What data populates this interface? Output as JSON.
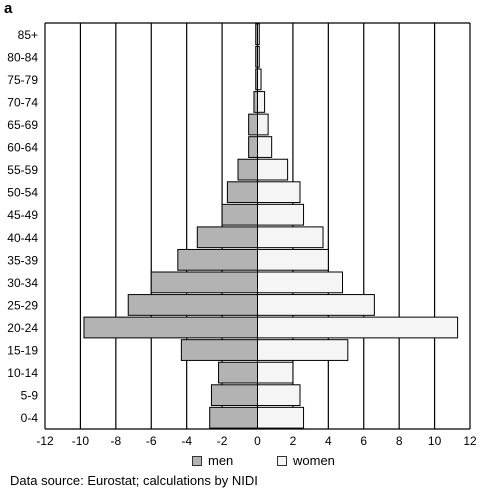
{
  "panel_label": "a",
  "source_note": "Data source: Eurostat; calculations by NIDI",
  "legend": {
    "men_label": "men",
    "women_label": "women"
  },
  "colors": {
    "men": "#b3b3b3",
    "women": "#f5f5f5",
    "gridline": "#000000",
    "bar_stroke": "#000000"
  },
  "chart_data": {
    "type": "bar",
    "orientation": "horizontal",
    "subtype": "population-pyramid",
    "categories": [
      "85+",
      "80-84",
      "75-79",
      "70-74",
      "65-69",
      "60-64",
      "55-59",
      "50-54",
      "45-49",
      "40-44",
      "35-39",
      "30-34",
      "25-29",
      "20-24",
      "15-19",
      "10-14",
      "5-9",
      "0-4"
    ],
    "series": [
      {
        "name": "men",
        "values": [
          -0.1,
          -0.1,
          -0.1,
          -0.2,
          -0.5,
          -0.5,
          -1.1,
          -1.7,
          -2.0,
          -3.4,
          -4.5,
          -6.0,
          -7.3,
          -9.8,
          -4.3,
          -2.2,
          -2.6,
          -2.7
        ]
      },
      {
        "name": "women",
        "values": [
          0.1,
          0.1,
          0.2,
          0.4,
          0.6,
          0.8,
          1.7,
          2.4,
          2.6,
          3.7,
          4.0,
          4.8,
          6.6,
          11.3,
          5.1,
          2.0,
          2.4,
          2.6
        ]
      }
    ],
    "xlim": [
      -12,
      12
    ],
    "xticks": [
      -12,
      -10,
      -8,
      -6,
      -4,
      -2,
      0,
      2,
      4,
      6,
      8,
      10,
      12
    ],
    "grid": "vertical",
    "legend_position": "bottom-center",
    "xlabel": "",
    "ylabel": ""
  }
}
